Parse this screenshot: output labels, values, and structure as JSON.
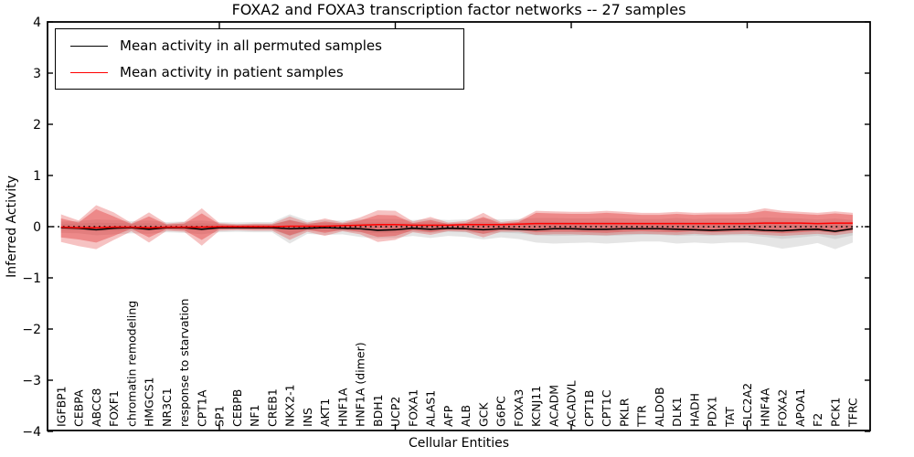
{
  "title": "FOXA2 and FOXA3 transcription factor networks -- 27 samples",
  "legend": {
    "items": [
      {
        "label": "Mean activity in all permuted samples",
        "color": "#000000"
      },
      {
        "label": "Mean activity in patient samples",
        "color": "#ff0000"
      }
    ],
    "position": "upper left"
  },
  "chart_data": {
    "type": "line",
    "title": "FOXA2 and FOXA3 transcription factor networks -- 27 samples",
    "xlabel": "Cellular Entities",
    "ylabel": "Inferred Activity",
    "ylim": [
      -4,
      4
    ],
    "grid": false,
    "background": "#ffffff",
    "yticks": [
      {
        "v": 4,
        "label": "4"
      },
      {
        "v": 3,
        "label": "3"
      },
      {
        "v": 2,
        "label": "2"
      },
      {
        "v": 1,
        "label": "1"
      },
      {
        "v": 0,
        "label": "0"
      },
      {
        "v": -1,
        "label": "−1"
      },
      {
        "v": -2,
        "label": "−2"
      },
      {
        "v": -3,
        "label": "−3"
      },
      {
        "v": -4,
        "label": "−4"
      }
    ],
    "major_xtick_indices": [
      9,
      19,
      29,
      39
    ],
    "categories": [
      "IGFBP1",
      "CEBPA",
      "ABCC8",
      "FOXF1",
      "chromatin remodeling",
      "HMGCS1",
      "NR3C1",
      "response to starvation",
      "CPT1A",
      "SP1",
      "CEBPB",
      "NF1",
      "CREB1",
      "NKX2-1",
      "INS",
      "AKT1",
      "HNF1A",
      "HNF1A (dimer)",
      "BDH1",
      "UCP2",
      "FOXA1",
      "ALAS1",
      "AFP",
      "ALB",
      "GCK",
      "G6PC",
      "FOXA3",
      "KCNJ11",
      "ACADM",
      "ACADVL",
      "CPT1B",
      "CPT1C",
      "PKLR",
      "TTR",
      "ALDOB",
      "DLK1",
      "HADH",
      "PDX1",
      "TAT",
      "SLC2A2",
      "HNF4A",
      "FOXA2",
      "APOA1",
      "F2",
      "PCK1",
      "TFRC"
    ],
    "colors": {
      "permuted_line": "#000000",
      "patient_line": "#ff0000",
      "patient_band": "#e03434",
      "permuted_band": "#878787",
      "zero_line": "#000000"
    },
    "zero_line": {
      "y": 0,
      "style": "dotted",
      "color": "#000000"
    },
    "series": [
      {
        "name": "Mean activity in all permuted samples",
        "color": "#000000",
        "values": [
          -0.02,
          -0.03,
          -0.06,
          -0.03,
          -0.02,
          -0.05,
          -0.02,
          -0.02,
          -0.05,
          -0.02,
          -0.02,
          -0.02,
          -0.02,
          -0.04,
          -0.03,
          -0.02,
          -0.03,
          -0.04,
          -0.07,
          -0.06,
          -0.03,
          -0.05,
          -0.03,
          -0.04,
          -0.06,
          -0.04,
          -0.05,
          -0.06,
          -0.04,
          -0.04,
          -0.05,
          -0.05,
          -0.04,
          -0.04,
          -0.04,
          -0.05,
          -0.06,
          -0.07,
          -0.06,
          -0.05,
          -0.07,
          -0.08,
          -0.06,
          -0.05,
          -0.09,
          -0.04
        ]
      },
      {
        "name": "Mean activity in patient samples",
        "color": "#ff0000",
        "values": [
          -0.01,
          -0.02,
          -0.02,
          -0.01,
          -0.01,
          -0.02,
          -0.01,
          -0.01,
          -0.01,
          0.0,
          0.0,
          0.0,
          0.0,
          0.01,
          0.01,
          0.01,
          0.02,
          0.03,
          0.04,
          0.04,
          0.03,
          0.03,
          0.03,
          0.04,
          0.04,
          0.04,
          0.05,
          0.06,
          0.06,
          0.06,
          0.06,
          0.06,
          0.06,
          0.06,
          0.06,
          0.06,
          0.06,
          0.06,
          0.06,
          0.06,
          0.07,
          0.07,
          0.07,
          0.06,
          0.07,
          0.07
        ]
      }
    ],
    "bands": {
      "patient_outer_upper": [
        0.24,
        0.12,
        0.42,
        0.28,
        0.07,
        0.28,
        0.06,
        0.09,
        0.36,
        0.07,
        0.05,
        0.06,
        0.06,
        0.2,
        0.08,
        0.16,
        0.08,
        0.18,
        0.32,
        0.31,
        0.1,
        0.19,
        0.08,
        0.11,
        0.27,
        0.09,
        0.13,
        0.31,
        0.3,
        0.29,
        0.29,
        0.31,
        0.29,
        0.27,
        0.27,
        0.29,
        0.27,
        0.28,
        0.28,
        0.29,
        0.36,
        0.31,
        0.29,
        0.27,
        0.3,
        0.27
      ],
      "patient_outer_lower": [
        -0.3,
        -0.38,
        -0.44,
        -0.26,
        -0.09,
        -0.31,
        -0.08,
        -0.1,
        -0.37,
        -0.08,
        -0.07,
        -0.08,
        -0.08,
        -0.26,
        -0.1,
        -0.18,
        -0.09,
        -0.15,
        -0.3,
        -0.26,
        -0.11,
        -0.16,
        -0.09,
        -0.1,
        -0.21,
        -0.1,
        -0.1,
        -0.16,
        -0.15,
        -0.15,
        -0.16,
        -0.17,
        -0.15,
        -0.14,
        -0.15,
        -0.16,
        -0.14,
        -0.16,
        -0.15,
        -0.14,
        -0.16,
        -0.18,
        -0.16,
        -0.14,
        -0.17,
        -0.12
      ],
      "patient_inner_upper": [
        0.16,
        0.08,
        0.34,
        0.2,
        0.05,
        0.2,
        0.04,
        0.06,
        0.26,
        0.05,
        0.03,
        0.04,
        0.04,
        0.13,
        0.05,
        0.1,
        0.06,
        0.12,
        0.23,
        0.22,
        0.07,
        0.13,
        0.05,
        0.07,
        0.19,
        0.06,
        0.09,
        0.27,
        0.26,
        0.25,
        0.25,
        0.27,
        0.25,
        0.23,
        0.23,
        0.25,
        0.23,
        0.24,
        0.24,
        0.25,
        0.31,
        0.27,
        0.25,
        0.23,
        0.26,
        0.23
      ],
      "patient_inner_lower": [
        -0.21,
        -0.25,
        -0.31,
        -0.18,
        -0.04,
        -0.21,
        -0.05,
        -0.07,
        -0.26,
        -0.05,
        -0.04,
        -0.05,
        -0.05,
        -0.17,
        -0.06,
        -0.12,
        -0.06,
        -0.1,
        -0.2,
        -0.18,
        -0.07,
        -0.11,
        -0.06,
        -0.07,
        -0.14,
        -0.07,
        -0.07,
        -0.11,
        -0.1,
        -0.1,
        -0.11,
        -0.12,
        -0.1,
        -0.09,
        -0.1,
        -0.11,
        -0.09,
        -0.11,
        -0.1,
        -0.09,
        -0.11,
        -0.13,
        -0.11,
        -0.09,
        -0.12,
        -0.07
      ],
      "permuted_upper": [
        0.1,
        0.11,
        0.14,
        0.13,
        0.11,
        0.12,
        0.09,
        0.1,
        0.12,
        0.09,
        0.08,
        0.09,
        0.09,
        0.24,
        0.12,
        0.13,
        0.12,
        0.14,
        0.15,
        0.15,
        0.13,
        0.15,
        0.13,
        0.14,
        0.16,
        0.14,
        0.15,
        0.17,
        0.17,
        0.16,
        0.16,
        0.17,
        0.16,
        0.15,
        0.15,
        0.17,
        0.15,
        0.16,
        0.16,
        0.16,
        0.18,
        0.17,
        0.16,
        0.14,
        0.16,
        0.13
      ],
      "permuted_lower": [
        -0.12,
        -0.13,
        -0.17,
        -0.15,
        -0.13,
        -0.14,
        -0.11,
        -0.12,
        -0.15,
        -0.11,
        -0.1,
        -0.11,
        -0.11,
        -0.33,
        -0.14,
        -0.16,
        -0.15,
        -0.2,
        -0.23,
        -0.22,
        -0.18,
        -0.22,
        -0.18,
        -0.2,
        -0.25,
        -0.21,
        -0.24,
        -0.31,
        -0.33,
        -0.32,
        -0.31,
        -0.33,
        -0.31,
        -0.29,
        -0.29,
        -0.33,
        -0.31,
        -0.33,
        -0.31,
        -0.31,
        -0.36,
        -0.43,
        -0.38,
        -0.32,
        -0.44,
        -0.31
      ]
    },
    "legend_position": "upper left"
  }
}
